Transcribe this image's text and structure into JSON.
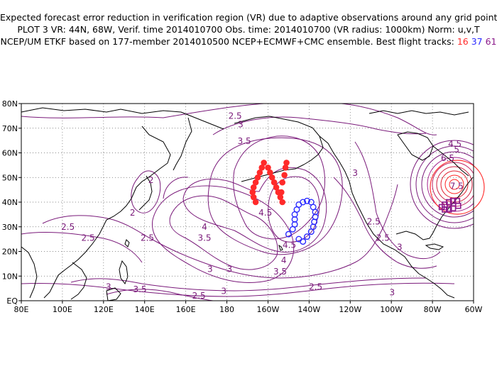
{
  "header": {
    "line1": "Expected forecast error reduction in verification region (VR) due to adaptive observations around any grid point.",
    "line2": "PLOT 3 VR: 44N, 68W, Verif. time 2014010700 Obs. time: 2014010700 (VR radius: 1000km) Norm: u,v,T",
    "line3_prefix": "NCEP/UM ETKF based on 177-member 2014010500 NCEP+ECMWF+CMC ensemble. Best flight tracks:",
    "track_red": "16",
    "track_blue": "37",
    "track_purple": "61"
  },
  "axes": {
    "y_ticks": [
      "EQ",
      "10N",
      "20N",
      "30N",
      "40N",
      "50N",
      "60N",
      "70N",
      "80N"
    ],
    "x_ticks": [
      "80E",
      "100E",
      "120E",
      "140E",
      "160E",
      "180",
      "160W",
      "140W",
      "120W",
      "100W",
      "80W",
      "60W"
    ]
  },
  "contour_labels": [
    {
      "text": "2.5",
      "lon": 184,
      "lat": 73.8
    },
    {
      "text": "3",
      "lon": 186.7,
      "lat": 70.4
    },
    {
      "text": "3.5",
      "lon": 188.5,
      "lat": 63.6
    },
    {
      "text": "3",
      "lon": 242.4,
      "lat": 50.6
    },
    {
      "text": "2",
      "lon": 143.1,
      "lat": 47.8
    },
    {
      "text": "2",
      "lon": 134.1,
      "lat": 34.6
    },
    {
      "text": "2.5",
      "lon": 102.7,
      "lat": 28.8
    },
    {
      "text": "2.5",
      "lon": 112.5,
      "lat": 24.3
    },
    {
      "text": "2.5",
      "lon": 141.3,
      "lat": 24.3
    },
    {
      "text": "4",
      "lon": 169.1,
      "lat": 28.8
    },
    {
      "text": "3.5",
      "lon": 169.1,
      "lat": 24.3
    },
    {
      "text": "4.5",
      "lon": 198.7,
      "lat": 34.6
    },
    {
      "text": "4.5",
      "lon": 210.4,
      "lat": 21.5
    },
    {
      "text": "4",
      "lon": 207.7,
      "lat": 15.3
    },
    {
      "text": "3.5",
      "lon": 205.9,
      "lat": 10.6
    },
    {
      "text": "2.5",
      "lon": 251.4,
      "lat": 30.9
    },
    {
      "text": "2.5",
      "lon": 255.9,
      "lat": 24.3
    },
    {
      "text": "3",
      "lon": 264,
      "lat": 20.6
    },
    {
      "text": "3",
      "lon": 181.3,
      "lat": 11.7
    },
    {
      "text": "3.5",
      "lon": 137.7,
      "lat": 3.4
    },
    {
      "text": "3",
      "lon": 178.5,
      "lat": 2.8
    },
    {
      "text": "2.5",
      "lon": 166.4,
      "lat": 0.9
    },
    {
      "text": "2.5",
      "lon": 223.2,
      "lat": 4.4
    },
    {
      "text": "3",
      "lon": 260.4,
      "lat": 2.2
    },
    {
      "text": "3",
      "lon": 171.8,
      "lat": 11.7
    },
    {
      "text": "3",
      "lon": 122.4,
      "lat": 4.4
    },
    {
      "text": "6.5",
      "lon": 287.4,
      "lat": 56.7
    },
    {
      "text": "7.5",
      "lon": 291.8,
      "lat": 45.3
    },
    {
      "text": "4.5",
      "lon": 290.9,
      "lat": 62.5
    },
    {
      "text": "5",
      "lon": 291.8,
      "lat": 60.2
    }
  ],
  "colors": {
    "contour": "#7a1a7a",
    "coast": "#000000",
    "track_red": "#ff2a2a",
    "track_blue": "#2a2aff",
    "track_purple": "#8b1a8b",
    "vr_circle": "#ff3030"
  },
  "tracks": {
    "red": [
      [
        194,
        40
      ],
      [
        193,
        42
      ],
      [
        192.5,
        44
      ],
      [
        193,
        46
      ],
      [
        194,
        48
      ],
      [
        195,
        50
      ],
      [
        196,
        52
      ],
      [
        197,
        54
      ],
      [
        198,
        56
      ],
      [
        200,
        54
      ],
      [
        201,
        52
      ],
      [
        202,
        50
      ],
      [
        203,
        48
      ],
      [
        204,
        46
      ],
      [
        205,
        44
      ],
      [
        206,
        42
      ],
      [
        207,
        40
      ],
      [
        206.5,
        44
      ],
      [
        207,
        48
      ],
      [
        208,
        51
      ],
      [
        208.5,
        54
      ],
      [
        209,
        56
      ]
    ],
    "blue": [
      [
        210,
        27
      ],
      [
        212,
        29
      ],
      [
        213,
        31
      ],
      [
        213,
        33
      ],
      [
        213,
        35
      ],
      [
        214,
        37
      ],
      [
        215,
        39
      ],
      [
        217,
        40
      ],
      [
        219,
        40.5
      ],
      [
        221,
        40
      ],
      [
        222,
        38
      ],
      [
        223,
        36
      ],
      [
        223,
        34
      ],
      [
        222.5,
        32
      ],
      [
        222,
        30
      ],
      [
        221,
        28
      ],
      [
        219,
        26
      ],
      [
        217,
        24
      ],
      [
        215,
        25
      ]
    ],
    "purple": [
      [
        284.5,
        38
      ],
      [
        286,
        39
      ],
      [
        288,
        40
      ],
      [
        290,
        40.5
      ],
      [
        292,
        40.5
      ],
      [
        292.5,
        38.5
      ],
      [
        290,
        37.5
      ],
      [
        288,
        37
      ],
      [
        286,
        37
      ]
    ]
  }
}
